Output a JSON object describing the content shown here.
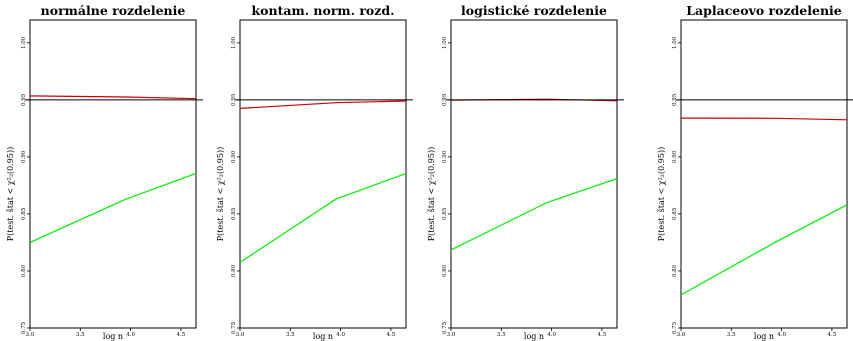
{
  "chart_data": [
    {
      "type": "line",
      "title": "normálne rozdelenie",
      "xlabel": "log n",
      "ylabel": "P(test. štat < χ²₂(0.95))",
      "xlim": [
        3.0,
        4.65
      ],
      "ylim": [
        0.75,
        1.02
      ],
      "xticks": [
        3.0,
        3.5,
        4.0,
        4.5
      ],
      "xtick_labels": [
        "3.0",
        "3.5",
        "4.0",
        "4.5"
      ],
      "yticks": [
        0.75,
        0.8,
        0.85,
        0.9,
        0.95,
        1.0
      ],
      "ytick_labels": [
        "0.75",
        "0.80",
        "0.85",
        "0.90",
        "0.95",
        "1.00"
      ],
      "reference_line": 0.95,
      "series": [
        {
          "color": "#cc0000",
          "x": [
            3.0,
            3.954,
            4.65
          ],
          "y": [
            0.9535,
            0.9525,
            0.951
          ]
        },
        {
          "color": "#00ee00",
          "x": [
            3.0,
            3.954,
            4.65
          ],
          "y": [
            0.825,
            0.863,
            0.8855
          ]
        }
      ]
    },
    {
      "type": "line",
      "title": "kontam. norm. rozd.",
      "xlabel": "log n",
      "ylabel": "P(test. štat < χ²₂(0.95))",
      "xlim": [
        3.0,
        4.65
      ],
      "ylim": [
        0.75,
        1.02
      ],
      "xticks": [
        3.0,
        3.5,
        4.0,
        4.5
      ],
      "xtick_labels": [
        "3.0",
        "3.5",
        "4.0",
        "4.5"
      ],
      "yticks": [
        0.75,
        0.8,
        0.85,
        0.9,
        0.95,
        1.0
      ],
      "ytick_labels": [
        "0.75",
        "0.80",
        "0.85",
        "0.90",
        "0.95",
        "1.00"
      ],
      "reference_line": 0.95,
      "series": [
        {
          "color": "#cc0000",
          "x": [
            3.0,
            3.954,
            4.65
          ],
          "y": [
            0.9425,
            0.9475,
            0.949
          ]
        },
        {
          "color": "#00ee00",
          "x": [
            3.0,
            3.954,
            4.65
          ],
          "y": [
            0.8075,
            0.863,
            0.8855
          ]
        }
      ]
    },
    {
      "type": "line",
      "title": "logistické rozdelenie",
      "xlabel": "log n",
      "ylabel": "P(test. štat < χ²₂(0.95))",
      "xlim": [
        3.0,
        4.65
      ],
      "ylim": [
        0.75,
        1.02
      ],
      "xticks": [
        3.0,
        3.5,
        4.0,
        4.5
      ],
      "xtick_labels": [
        "3.0",
        "3.5",
        "4.0",
        "4.5"
      ],
      "yticks": [
        0.75,
        0.8,
        0.85,
        0.9,
        0.95,
        1.0
      ],
      "ytick_labels": [
        "0.75",
        "0.80",
        "0.85",
        "0.90",
        "0.95",
        "1.00"
      ],
      "reference_line": 0.95,
      "series": [
        {
          "color": "#cc0000",
          "x": [
            3.0,
            3.954,
            4.65
          ],
          "y": [
            0.9498,
            0.9506,
            0.9492
          ]
        },
        {
          "color": "#00ee00",
          "x": [
            3.0,
            3.954,
            4.65
          ],
          "y": [
            0.8185,
            0.86,
            0.881
          ]
        }
      ]
    },
    {
      "type": "line",
      "title": "Laplaceovo rozdelenie",
      "xlabel": "log n",
      "ylabel": "P(test. štat < χ²₂(0.95))",
      "xlim": [
        3.0,
        4.65
      ],
      "ylim": [
        0.75,
        1.02
      ],
      "xticks": [
        3.0,
        3.5,
        4.0,
        4.5
      ],
      "xtick_labels": [
        "3.0",
        "3.5",
        "4.0",
        "4.5"
      ],
      "yticks": [
        0.75,
        0.8,
        0.85,
        0.9,
        0.95,
        1.0
      ],
      "ytick_labels": [
        "0.75",
        "0.80",
        "0.85",
        "0.90",
        "0.95",
        "1.00"
      ],
      "reference_line": 0.95,
      "series": [
        {
          "color": "#cc0000",
          "x": [
            3.0,
            3.954,
            4.65
          ],
          "y": [
            0.934,
            0.9338,
            0.9325
          ]
        },
        {
          "color": "#00ee00",
          "x": [
            3.0,
            3.954,
            4.65
          ],
          "y": [
            0.779,
            0.826,
            0.858
          ]
        }
      ]
    }
  ]
}
